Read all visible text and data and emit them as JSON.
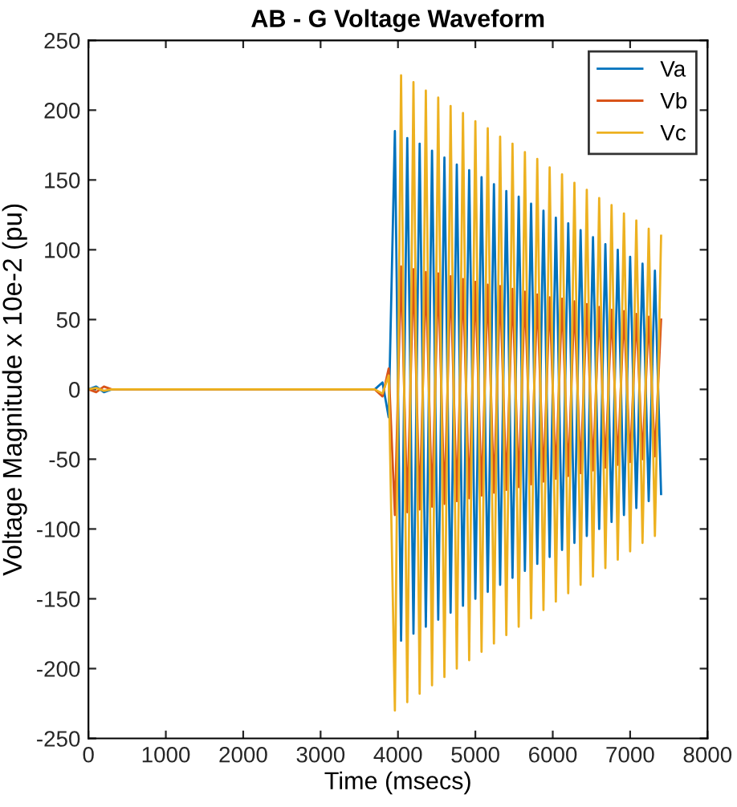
{
  "chart_data": {
    "type": "line",
    "title": "AB - G Voltage Waveform",
    "xlabel": "Time (msecs)",
    "ylabel": "Voltage Magnitude x 10e-2 (pu)",
    "x": [
      0,
      100,
      200,
      300,
      3700,
      3800,
      3880,
      3960,
      4040,
      4120,
      4200,
      4280,
      4360,
      4440,
      4520,
      4600,
      4680,
      4760,
      4840,
      4920,
      5000,
      5080,
      5160,
      5240,
      5320,
      5400,
      5480,
      5560,
      5640,
      5720,
      5800,
      5880,
      5960,
      6040,
      6120,
      6200,
      6280,
      6360,
      6440,
      6520,
      6600,
      6680,
      6760,
      6840,
      6920,
      7000,
      7080,
      7160,
      7240,
      7320,
      7400
    ],
    "series": [
      {
        "name": "Va",
        "color": "#0072bd",
        "values": [
          0,
          2,
          -2,
          0,
          0,
          5,
          -20,
          185,
          -180,
          180,
          -175,
          176,
          -170,
          171,
          -165,
          166,
          -160,
          161,
          -155,
          157,
          -150,
          152,
          -145,
          147,
          -140,
          142,
          -135,
          138,
          -130,
          133,
          -125,
          128,
          -120,
          123,
          -115,
          119,
          -110,
          114,
          -105,
          109,
          -100,
          104,
          -95,
          100,
          -90,
          95,
          -85,
          90,
          -80,
          85,
          -75
        ]
      },
      {
        "name": "Vb",
        "color": "#d95319",
        "values": [
          0,
          -2,
          2,
          0,
          0,
          -5,
          15,
          -90,
          88,
          -88,
          86,
          -86,
          84,
          -84,
          83,
          -82,
          81,
          -80,
          79,
          -78,
          77,
          -76,
          75,
          -74,
          74,
          -72,
          72,
          -70,
          70,
          -68,
          68,
          -66,
          66,
          -64,
          65,
          -62,
          63,
          -60,
          61,
          -58,
          59,
          -56,
          57,
          -54,
          56,
          -52,
          54,
          -50,
          52,
          -48,
          50
        ]
      },
      {
        "name": "Vc",
        "color": "#edb120",
        "values": [
          0,
          1,
          -1,
          0,
          0,
          -3,
          10,
          -230,
          225,
          -224,
          220,
          -218,
          214,
          -212,
          209,
          -206,
          203,
          -200,
          198,
          -194,
          192,
          -188,
          187,
          -182,
          181,
          -176,
          176,
          -170,
          170,
          -164,
          165,
          -158,
          159,
          -152,
          154,
          -146,
          148,
          -140,
          143,
          -134,
          137,
          -128,
          132,
          -122,
          126,
          -116,
          121,
          -110,
          115,
          -105,
          110
        ]
      }
    ],
    "xlim": [
      0,
      8000
    ],
    "ylim": [
      -250,
      250
    ],
    "xticks": [
      0,
      1000,
      2000,
      3000,
      4000,
      5000,
      6000,
      7000,
      8000
    ],
    "yticks": [
      -250,
      -200,
      -150,
      -100,
      -50,
      0,
      50,
      100,
      150,
      200,
      250
    ],
    "grid": false,
    "legend": "top right",
    "marker": "none",
    "line_style": "solid"
  }
}
